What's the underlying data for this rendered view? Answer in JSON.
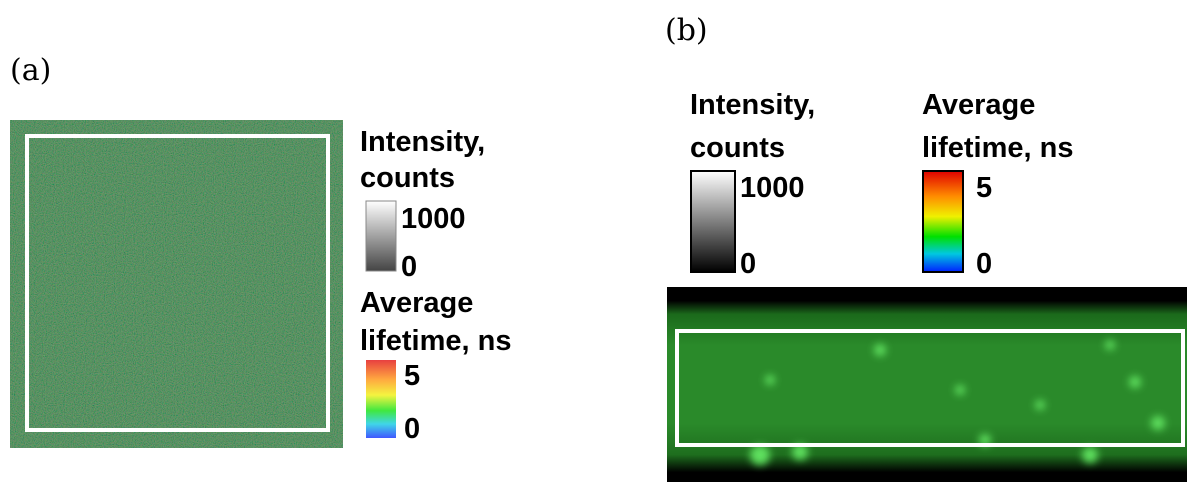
{
  "panels": [
    {
      "label": "(a)",
      "intensity": {
        "title_lines": [
          "Intensity,",
          "counts"
        ],
        "max": "1000",
        "min": "0"
      },
      "lifetime": {
        "title_lines": [
          "Average",
          "lifetime, ns"
        ],
        "max": "5",
        "min": "0"
      }
    },
    {
      "label": "(b)",
      "intensity": {
        "title_lines": [
          "Intensity,",
          "counts"
        ],
        "max": "1000",
        "min": "0"
      },
      "lifetime": {
        "title_lines": [
          "Average",
          "lifetime, ns"
        ],
        "max": "5",
        "min": "0"
      }
    }
  ]
}
